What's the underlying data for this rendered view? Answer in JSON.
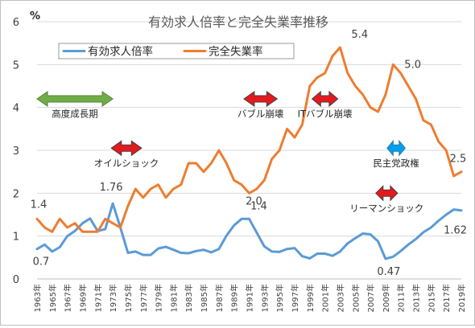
{
  "chart_data": {
    "type": "line",
    "title": "有効求人倍率と完全失業率推移",
    "unit_label": "%",
    "x": [
      1963,
      1964,
      1965,
      1966,
      1967,
      1968,
      1969,
      1970,
      1971,
      1972,
      1973,
      1974,
      1975,
      1976,
      1977,
      1978,
      1979,
      1980,
      1981,
      1982,
      1983,
      1984,
      1985,
      1986,
      1987,
      1988,
      1989,
      1990,
      1991,
      1992,
      1993,
      1994,
      1995,
      1996,
      1997,
      1998,
      1999,
      2000,
      2001,
      2002,
      2003,
      2004,
      2005,
      2006,
      2007,
      2008,
      2009,
      2010,
      2011,
      2012,
      2013,
      2014,
      2015,
      2016,
      2017,
      2018,
      2019
    ],
    "x_tick_labels": [
      "1963年",
      "1965年",
      "1967年",
      "1969年",
      "1971年",
      "1973年",
      "1975年",
      "1977年",
      "1979年",
      "1981年",
      "1983年",
      "1985年",
      "1987年",
      "1989年",
      "1991年",
      "1993年",
      "1995年",
      "1997年",
      "1999年",
      "2001年",
      "2003年",
      "2005年",
      "2007年",
      "2009年",
      "2011年",
      "2013年",
      "2015年",
      "2017年",
      "2019年"
    ],
    "ylim": [
      0,
      6
    ],
    "y_ticks": [
      "0",
      "1",
      "2",
      "3",
      "4",
      "5",
      "6"
    ],
    "grid": true,
    "legend_position": "top-left",
    "series": [
      {
        "name": "有効求人倍率",
        "color": "#5b9bd5",
        "values": [
          0.7,
          0.8,
          0.64,
          0.74,
          1.0,
          1.12,
          1.3,
          1.41,
          1.12,
          1.16,
          1.76,
          1.2,
          0.61,
          0.64,
          0.56,
          0.56,
          0.71,
          0.75,
          0.68,
          0.61,
          0.6,
          0.65,
          0.68,
          0.62,
          0.7,
          1.01,
          1.25,
          1.4,
          1.4,
          1.08,
          0.76,
          0.64,
          0.63,
          0.7,
          0.72,
          0.53,
          0.48,
          0.59,
          0.59,
          0.54,
          0.64,
          0.83,
          0.95,
          1.06,
          1.04,
          0.88,
          0.47,
          0.52,
          0.65,
          0.8,
          0.93,
          1.09,
          1.2,
          1.36,
          1.5,
          1.62,
          1.6
        ]
      },
      {
        "name": "完全失業率",
        "color": "#ed7d31",
        "values": [
          1.4,
          1.2,
          1.1,
          1.4,
          1.2,
          1.3,
          1.1,
          1.1,
          1.1,
          1.4,
          1.3,
          1.2,
          1.7,
          2.1,
          1.9,
          2.1,
          2.2,
          1.9,
          2.1,
          2.2,
          2.7,
          2.7,
          2.5,
          2.7,
          3.0,
          2.7,
          2.3,
          2.2,
          2.0,
          2.1,
          2.3,
          2.8,
          3.0,
          3.5,
          3.3,
          3.6,
          4.5,
          4.7,
          4.8,
          5.2,
          5.4,
          4.8,
          4.5,
          4.3,
          4.0,
          3.9,
          4.3,
          5.0,
          4.8,
          4.5,
          4.2,
          3.7,
          3.6,
          3.2,
          3.0,
          2.4,
          2.5
        ]
      }
    ],
    "data_labels": [
      {
        "text": "1.4",
        "x": 1963,
        "y": 1.4,
        "series": "完全失業率"
      },
      {
        "text": "0.7",
        "x": 1963,
        "y": 0.7,
        "series": "有効求人倍率"
      },
      {
        "text": "1.76",
        "x": 1973,
        "y": 1.76,
        "series": "有効求人倍率"
      },
      {
        "text": "1.4",
        "x": 1991,
        "y": 1.4,
        "series": "有効求人倍率"
      },
      {
        "text": "2.0",
        "x": 1991,
        "y": 2.0,
        "series": "完全失業率"
      },
      {
        "text": "5.4",
        "x": 2003,
        "y": 5.4,
        "series": "完全失業率"
      },
      {
        "text": "5.0",
        "x": 2010,
        "y": 5.0,
        "series": "完全失業率"
      },
      {
        "text": "0.47",
        "x": 2009,
        "y": 0.47,
        "series": "有効求人倍率"
      },
      {
        "text": "2.5",
        "x": 2019,
        "y": 2.5,
        "series": "完全失業率"
      },
      {
        "text": "1.62",
        "x": 2018,
        "y": 1.62,
        "series": "有効求人倍率"
      }
    ],
    "annotations": [
      {
        "text": "高度成長期",
        "x_from": 1963,
        "x_to": 1973,
        "y": 4.2,
        "label_y": 3.85,
        "color": "#70ad47",
        "border": "#548235"
      },
      {
        "text": "オイルショック",
        "x_from": 1972.8,
        "x_to": 1976.8,
        "y": 3.05,
        "label_y": 2.7,
        "color": "#e41a1c",
        "border": "#404040"
      },
      {
        "text": "バブル崩壊",
        "x_from": 1990.3,
        "x_to": 1994.7,
        "y": 4.2,
        "label_y": 3.85,
        "color": "#e41a1c",
        "border": "#404040"
      },
      {
        "text": "ITバブル崩壊",
        "x_from": 1999.3,
        "x_to": 2002.7,
        "y": 4.2,
        "label_y": 3.85,
        "color": "#e41a1c",
        "border": "#404040"
      },
      {
        "text": "民主党政権",
        "x_from": 2009.2,
        "x_to": 2011.6,
        "y": 3.05,
        "label_y": 2.7,
        "color": "#00a0e9",
        "border": "#2e75b6"
      },
      {
        "text": "リーマンショック",
        "x_from": 2007.7,
        "x_to": 2010.6,
        "y": 2.0,
        "label_y": 1.65,
        "color": "#e41a1c",
        "border": "#404040"
      }
    ]
  }
}
